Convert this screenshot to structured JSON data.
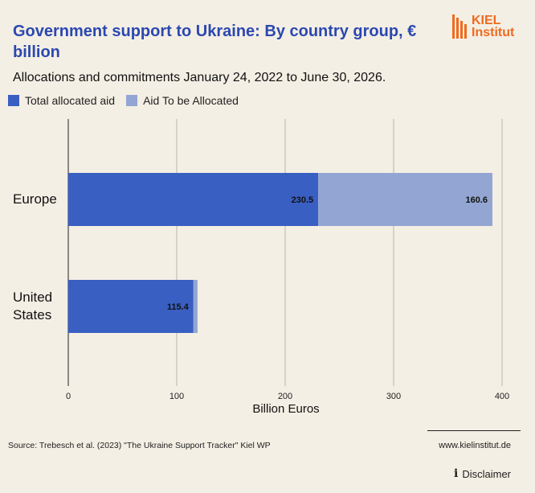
{
  "header": {
    "title": "Government support to Ukraine: By country group, € billion",
    "subtitle": "Allocations and commitments January 24, 2022 to June 30, 2026.",
    "logo": {
      "line1": "KIEL",
      "line2": "Institut",
      "color": "#ef6a1f"
    }
  },
  "footer": {
    "source": "Source: Trebesch et al. (2023) \"The Ukraine Support Tracker\" Kiel WP",
    "website": "www.kielinstitut.de",
    "disclaimer": "Disclaimer",
    "disclaimer_icon": "info-icon"
  },
  "chart_data": {
    "type": "bar",
    "orientation": "horizontal",
    "stacked": true,
    "categories": [
      "Europe",
      "United States"
    ],
    "series": [
      {
        "name": "Total allocated aid",
        "values": [
          230.5,
          115.4
        ],
        "color": "#3a5fc3",
        "labels": [
          "230.5",
          "115.4"
        ]
      },
      {
        "name": "Aid To be Allocated",
        "values": [
          160.6,
          3.8
        ],
        "color": "#93a6d3",
        "labels": [
          "160.6",
          ""
        ]
      }
    ],
    "xlabel": "Billion Euros",
    "xlim": [
      0,
      400
    ],
    "xticks": [
      0,
      100,
      200,
      300,
      400
    ],
    "grid": true,
    "legend_position": "top-left"
  }
}
